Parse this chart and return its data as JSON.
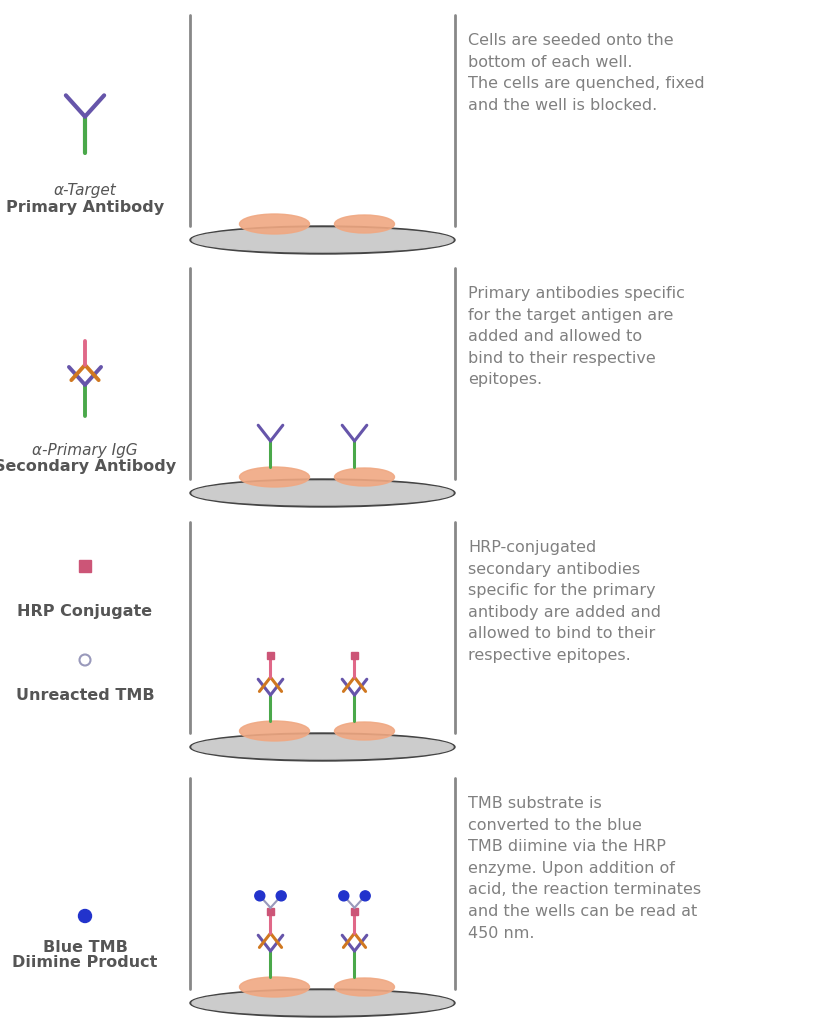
{
  "bg_color": "#ffffff",
  "text_color": "#808080",
  "label_color": "#555555",
  "rows": [
    {
      "icon_label1": "α-Target",
      "icon_label2": "Primary Antibody",
      "icon_label1_italic": true,
      "description": "Cells are seeded onto the\nbottom of each well.\nThe cells are quenched, fixed\nand the well is blocked.",
      "stage": 0
    },
    {
      "icon_label1": "α-Primary IgG",
      "icon_label2": "Secondary Antibody",
      "icon_label1_italic": true,
      "description": "Primary antibodies specific\nfor the target antigen are\nadded and allowed to\nbind to their respective\nepitopes.",
      "stage": 1
    },
    {
      "icon_label1": "HRP Conjugate",
      "icon_label2": "",
      "icon_label3": "Unreacted TMB",
      "icon_label1_italic": false,
      "description": "HRP-conjugated\nsecondary antibodies\nspecific for the primary\nantibody are added and\nallowed to bind to their\nrespective epitopes.",
      "stage": 2
    },
    {
      "icon_label1": "Blue TMB",
      "icon_label2": "Diimine Product",
      "icon_label1_italic": false,
      "description": "TMB substrate is\nconverted to the blue\nTMB diimine via the HRP\nenzyme. Upon addition of\nacid, the reaction terminates\nand the wells can be read at\n450 nm.",
      "stage": 3
    }
  ],
  "cell_color": "#f0a882",
  "ab_green": "#4aa84a",
  "ab_purple": "#6655aa",
  "ab_orange": "#d07820",
  "ab_pink": "#e06888",
  "hrp_color": "#cc5577",
  "tmb_gray": "#9999bb",
  "tmb_blue": "#2233cc",
  "well_line_color": "#888888",
  "well_bottom_color": "#444444",
  "well_bottom_fill": "#cccccc"
}
